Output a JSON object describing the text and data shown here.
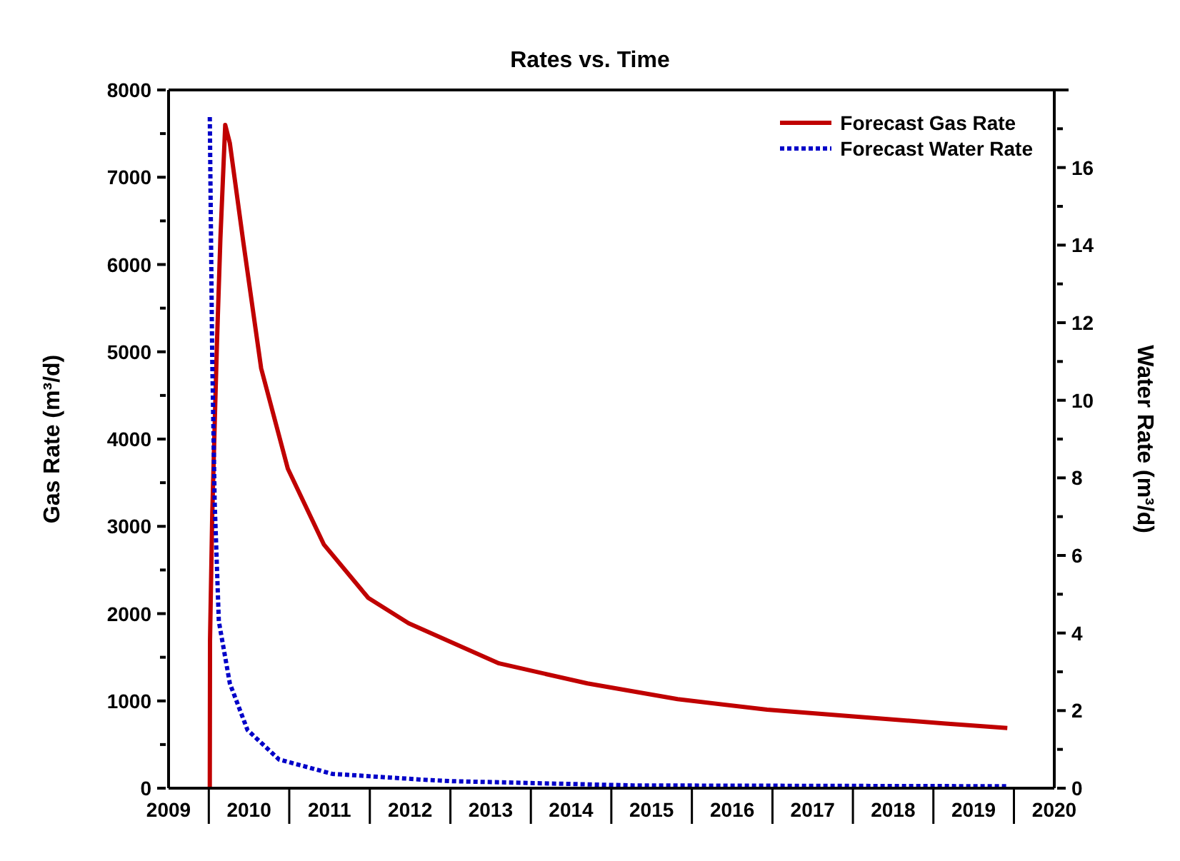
{
  "chart_data": {
    "type": "line",
    "title": "Rates vs. Time",
    "ylabel": "Gas Rate (m³/d)",
    "y2label": "Water Rate (m³/d)",
    "xlim": [
      "2009-07-01",
      "2020-07-01"
    ],
    "xticks": [
      {
        "value": "2009-07-01",
        "label": "2009"
      },
      {
        "value": "2010-07-01",
        "label": "2010"
      },
      {
        "value": "2011-07-01",
        "label": "2011"
      },
      {
        "value": "2012-07-01",
        "label": "2012"
      },
      {
        "value": "2013-07-01",
        "label": "2013"
      },
      {
        "value": "2014-07-01",
        "label": "2014"
      },
      {
        "value": "2015-07-01",
        "label": "2015"
      },
      {
        "value": "2016-07-01",
        "label": "2016"
      },
      {
        "value": "2017-07-01",
        "label": "2017"
      },
      {
        "value": "2018-07-01",
        "label": "2018"
      },
      {
        "value": "2019-07-01",
        "label": "2019"
      },
      {
        "value": "2020-07-01",
        "label": "2020"
      }
    ],
    "ylim": [
      0,
      8000
    ],
    "yticks": [
      0,
      {
        "value": 500,
        "label": null
      },
      1000,
      {
        "value": 1500,
        "label": null
      },
      2000,
      {
        "value": 2500,
        "label": null
      },
      3000,
      {
        "value": 3500,
        "label": null
      },
      4000,
      {
        "value": 4500,
        "label": null
      },
      5000,
      {
        "value": 5500,
        "label": null
      },
      6000,
      {
        "value": 6500,
        "label": null
      },
      7000,
      {
        "value": 7500,
        "label": null
      },
      8000
    ],
    "y2lim": [
      0,
      18
    ],
    "y2ticks": [
      0,
      {
        "value": 1,
        "label": null
      },
      2,
      {
        "value": 3,
        "label": null
      },
      4,
      {
        "value": 5,
        "label": null
      },
      6,
      {
        "value": 7,
        "label": null
      },
      8,
      {
        "value": 9,
        "label": null
      },
      10,
      {
        "value": 11,
        "label": null
      },
      12,
      {
        "value": 13,
        "label": null
      },
      14,
      {
        "value": 15,
        "label": null
      },
      16,
      {
        "value": 17,
        "label": null
      }
    ],
    "grid": false,
    "legend": "top right",
    "marker": "none",
    "series": [
      {
        "name": "Forecast Gas Rate",
        "color": "#c00000",
        "line_style": "solid",
        "x": [
          "2010-01-04",
          "2010-01-05",
          "2010-01-15",
          "2010-01-26",
          "2010-02-06",
          "2010-02-21",
          "2010-03-15",
          "2010-04-05",
          "2010-06-06",
          "2010-08-25",
          "2010-12-24",
          "2011-06-06",
          "2011-12-24",
          "2012-06-24",
          "2013-08-08",
          "2014-09-13",
          "2015-10-27",
          "2016-12-06",
          "2018-01-12",
          "2019-02-24",
          "2019-12-01"
        ],
        "values": [
          0,
          1690,
          3120,
          4150,
          5140,
          6290,
          7600,
          7390,
          6240,
          4810,
          3660,
          2790,
          2180,
          1890,
          1430,
          1200,
          1020,
          900,
          820,
          740,
          690
        ]
      },
      {
        "name": "Forecast Water Rate",
        "color": "#0000c8",
        "line_style": "dotted",
        "axis": "y2",
        "x": [
          "2010-01-04",
          "2010-01-15",
          "2010-01-26",
          "2010-02-14",
          "2010-04-05",
          "2010-06-24",
          "2010-11-14",
          "2011-07-13",
          "2012-08-25",
          "2013-01-12",
          "2015-04-10",
          "2019-12-01"
        ],
        "values": [
          17.3,
          11.1,
          7.4,
          4.3,
          2.7,
          1.5,
          0.74,
          0.37,
          0.22,
          0.18,
          0.07,
          0.05
        ]
      }
    ]
  }
}
